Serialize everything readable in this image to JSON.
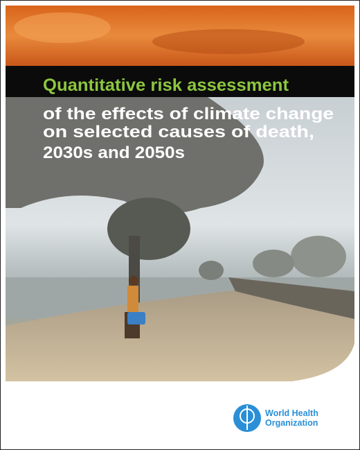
{
  "cover": {
    "title": "Quantitative risk assessment",
    "subtitle_lines": [
      "of the effects of climate change",
      "on selected causes of death,",
      "2030s and 2050s"
    ],
    "publisher_lines": [
      "World Health",
      "Organization"
    ]
  }
}
